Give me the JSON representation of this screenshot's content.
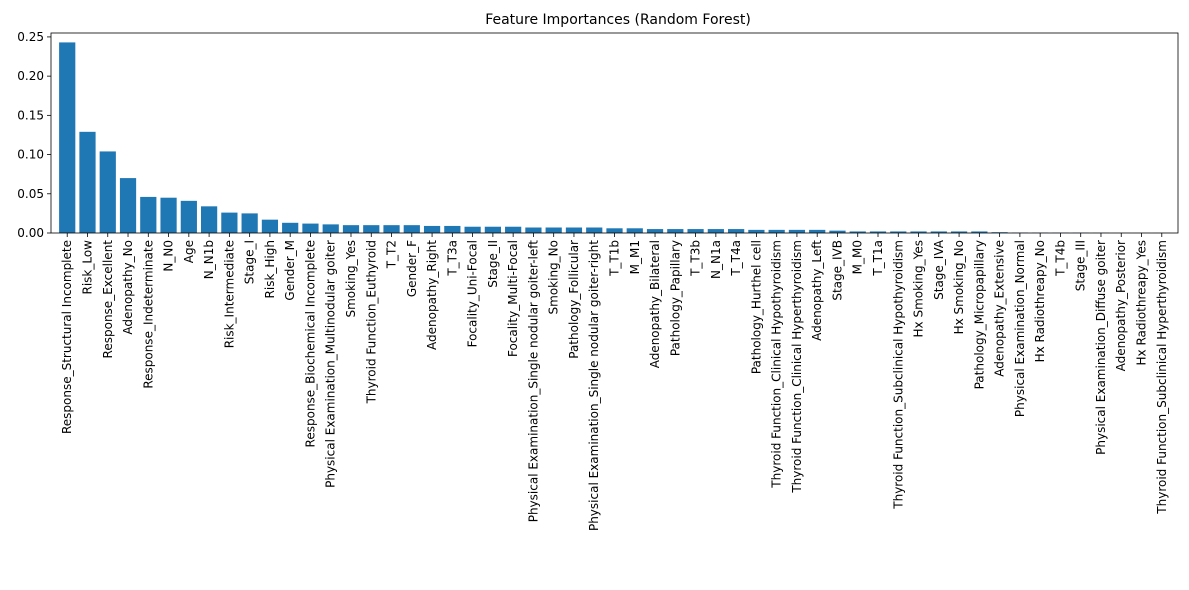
{
  "chart_data": {
    "type": "bar",
    "title": "Feature Importances (Random Forest)",
    "xlabel": "",
    "ylabel": "",
    "ylim": [
      0,
      0.255
    ],
    "yticks": [
      0.0,
      0.05,
      0.1,
      0.15,
      0.2,
      0.25
    ],
    "ytick_labels": [
      "0.00",
      "0.05",
      "0.10",
      "0.15",
      "0.20",
      "0.25"
    ],
    "grid": false,
    "bar_color": "#1f77b4",
    "categories": [
      "Response_Structural Incomplete",
      "Risk_Low",
      "Response_Excellent",
      "Adenopathy_No",
      "Response_Indeterminate",
      "N_N0",
      "Age",
      "N_N1b",
      "Risk_Intermediate",
      "Stage_I",
      "Risk_High",
      "Gender_M",
      "Response_Biochemical Incomplete",
      "Physical Examination_Multinodular goiter",
      "Smoking_Yes",
      "Thyroid Function_Euthyroid",
      "T_T2",
      "Gender_F",
      "Adenopathy_Right",
      "T_T3a",
      "Focality_Uni-Focal",
      "Stage_II",
      "Focality_Multi-Focal",
      "Physical Examination_Single nodular goiter-left",
      "Smoking_No",
      "Pathology_Follicular",
      "Physical Examination_Single nodular goiter-right",
      "T_T1b",
      "M_M1",
      "Adenopathy_Bilateral",
      "Pathology_Papillary",
      "T_T3b",
      "N_N1a",
      "T_T4a",
      "Pathology_Hurthel cell",
      "Thyroid Function_Clinical Hypothyroidism",
      "Thyroid Function_Clinical Hyperthyroidism",
      "Adenopathy_Left",
      "Stage_IVB",
      "M_M0",
      "T_T1a",
      "Thyroid Function_Subclinical Hypothyroidism",
      "Hx Smoking_Yes",
      "Stage_IVA",
      "Hx Smoking_No",
      "Pathology_Micropapillary",
      "Adenopathy_Extensive",
      "Physical Examination_Normal",
      "Hx Radiothreapy_No",
      "T_T4b",
      "Stage_III",
      "Physical Examination_Diffuse goiter",
      "Adenopathy_Posterior",
      "Hx Radiothreapy_Yes",
      "Thyroid Function_Subclinical Hyperthyroidism"
    ],
    "values": [
      0.243,
      0.129,
      0.104,
      0.07,
      0.046,
      0.045,
      0.041,
      0.034,
      0.026,
      0.025,
      0.017,
      0.013,
      0.012,
      0.011,
      0.01,
      0.01,
      0.01,
      0.01,
      0.009,
      0.009,
      0.008,
      0.008,
      0.008,
      0.007,
      0.007,
      0.007,
      0.007,
      0.006,
      0.006,
      0.005,
      0.005,
      0.005,
      0.005,
      0.005,
      0.004,
      0.004,
      0.004,
      0.004,
      0.003,
      0.002,
      0.002,
      0.002,
      0.002,
      0.002,
      0.002,
      0.002,
      0.001,
      0.0005,
      0.0004,
      0.0003,
      0.0003,
      0.0002,
      0.0001,
      0.0001,
      0.0001
    ]
  }
}
